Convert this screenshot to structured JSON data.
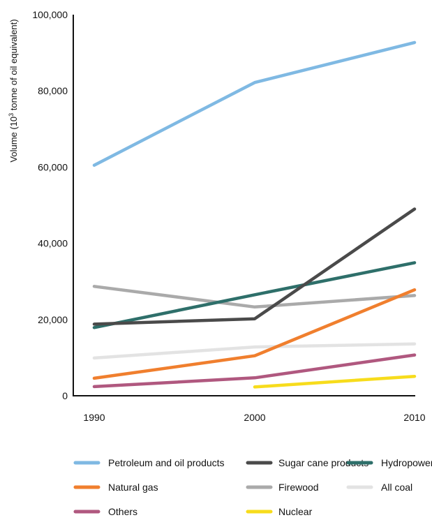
{
  "chart_data": {
    "type": "line",
    "title": "",
    "xlabel": "",
    "ylabel": "Volume (10³ tonne of oil equivalent)",
    "ylabel_parts": {
      "pre": "Volume (10",
      "sup": "3",
      "post": " tonne of oil equivalent)"
    },
    "x": [
      "1990",
      "2000",
      "2010"
    ],
    "x_numeric": [
      1990,
      2000,
      2010
    ],
    "xlim": [
      1990,
      2010
    ],
    "ylim": [
      0,
      100000
    ],
    "y_ticks": [
      0,
      20000,
      40000,
      60000,
      80000,
      100000
    ],
    "y_tick_labels": [
      "0",
      "20,000",
      "40,000",
      "60,000",
      "80,000",
      "100,000"
    ],
    "grid": false,
    "legend_position": "bottom",
    "series": [
      {
        "name": "Petroleum and oil products",
        "color": "#7fb9e3",
        "values": [
          60500,
          82200,
          92700
        ]
      },
      {
        "name": "Sugar cane products",
        "color": "#4a4a4a",
        "values": [
          18800,
          20200,
          49000
        ]
      },
      {
        "name": "Hydropower",
        "color": "#2e6f6a",
        "values": [
          17900,
          26500,
          34900
        ]
      },
      {
        "name": "Natural gas",
        "color": "#f07f2e",
        "values": [
          4600,
          10500,
          27800
        ]
      },
      {
        "name": "Firewood",
        "color": "#aaaaaa",
        "values": [
          28700,
          23300,
          26300
        ]
      },
      {
        "name": "All coal",
        "color": "#e3e3e3",
        "values": [
          9900,
          12800,
          13600
        ]
      },
      {
        "name": "Others",
        "color": "#b0587f",
        "values": [
          2400,
          4700,
          10700
        ]
      },
      {
        "name": "Nuclear",
        "color": "#f7dc1c",
        "values": [
          null,
          2300,
          5100
        ]
      }
    ]
  }
}
